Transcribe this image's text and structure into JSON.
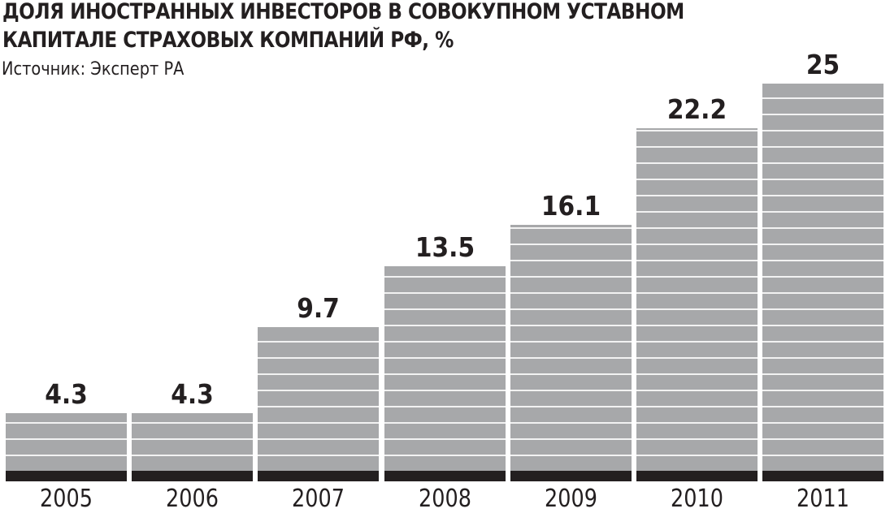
{
  "header": {
    "title_line1": "ДОЛЯ ИНОСТРАННЫХ ИНВЕСТОРОВ В СОВОКУПНОМ УСТАВНОМ",
    "title_line2": "КАПИТАЛЕ СТРАХОВЫХ КОМПАНИЙ РФ, %",
    "source": "Источник: Эксперт РА"
  },
  "colors": {
    "bar_fill": "#a7a8aa",
    "stripe_line": "#f2f2f2",
    "base_band": "#231f20",
    "text": "#231f20",
    "background": "#ffffff"
  },
  "chart_data": {
    "type": "bar",
    "title": "Доля иностранных инвесторов в совокупном уставном капитале страховых компаний РФ, %",
    "subtitle": "Источник: Эксперт РА",
    "categories": [
      "2005",
      "2006",
      "2007",
      "2008",
      "2009",
      "2010",
      "2011"
    ],
    "values": [
      4.3,
      4.3,
      9.7,
      13.5,
      16.1,
      22.2,
      25
    ],
    "value_labels": [
      "4.3",
      "4.3",
      "9.7",
      "13.5",
      "16.1",
      "22.2",
      "25"
    ],
    "xlabel": "",
    "ylabel": "%",
    "ylim": [
      0,
      25
    ],
    "grid": false,
    "legend": null,
    "data_labels": true
  }
}
